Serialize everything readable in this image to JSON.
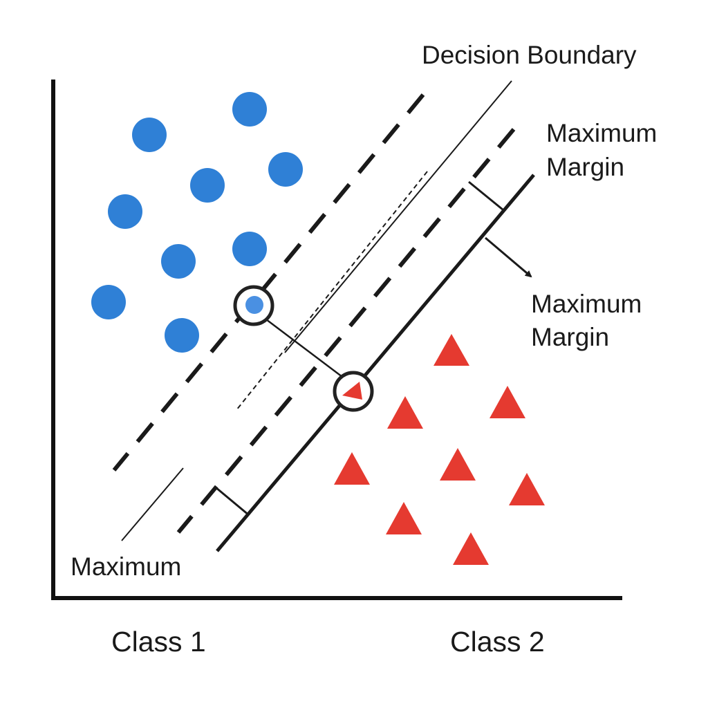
{
  "labels": {
    "decision_boundary": "Decision Boundary",
    "margin_upper_line1": "Maximum",
    "margin_upper_line2": "Margin",
    "margin_arrow_line1": "Maximum",
    "margin_arrow_line2": "Margin",
    "margin_lower": "Maximum",
    "class1": "Class 1",
    "class2": "Class 2"
  },
  "colors": {
    "class1_point": "#2f80d6",
    "class1_support": "#4a90e2",
    "class2_point": "#e53a30",
    "line": "#1a1a1a",
    "axis": "#111111"
  },
  "icons": {
    "class1_marker": "circle-icon",
    "class2_marker": "triangle-icon",
    "support_vector_marker": "ring-icon"
  }
}
